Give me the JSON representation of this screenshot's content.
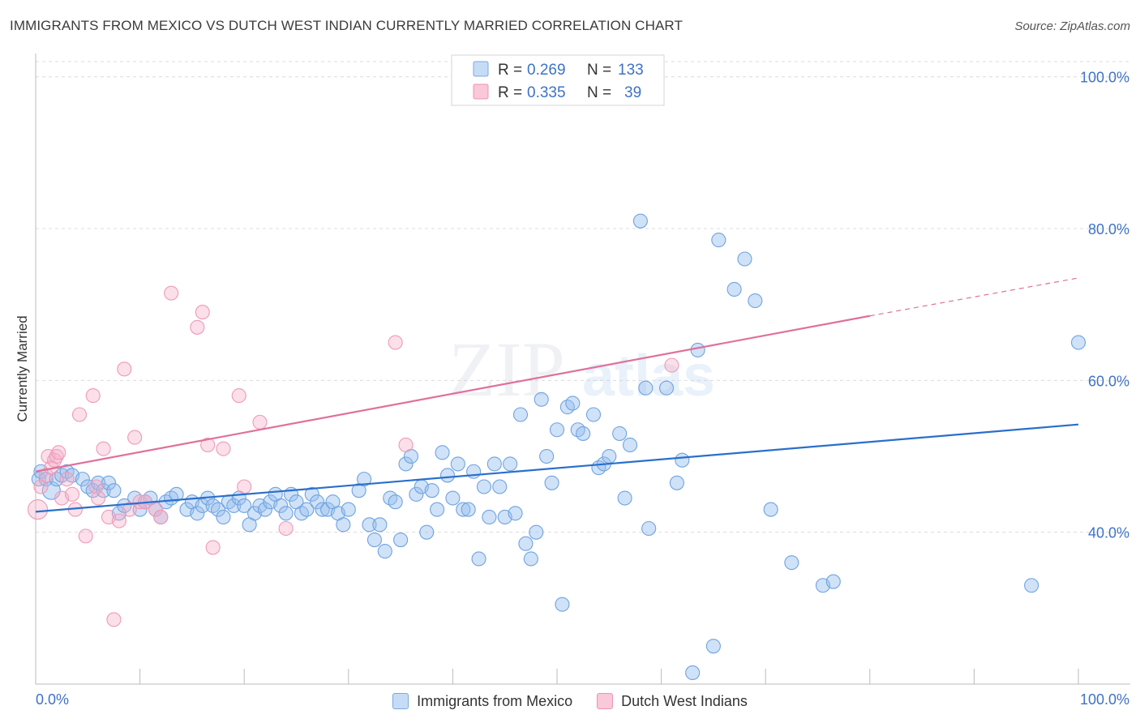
{
  "title": "IMMIGRANTS FROM MEXICO VS DUTCH WEST INDIAN CURRENTLY MARRIED CORRELATION CHART",
  "source": "Source: ZipAtlas.com",
  "watermark": {
    "zip": "ZIP",
    "atlas": "atlas"
  },
  "legend_stats": [
    {
      "r_label": "R =",
      "r_value": "0.269",
      "n_label": "N =",
      "n_value": "133"
    },
    {
      "r_label": "R =",
      "r_value": "0.335",
      "n_label": "N =",
      "n_value": "39"
    }
  ],
  "colors": {
    "blue": "#6fa3e0",
    "blue_line": "#2a6fcc",
    "pink": "#f0a0b8",
    "pink_line": "#e0709a",
    "tick_label": "#3d72c8"
  },
  "chart_data": {
    "type": "scatter",
    "title": "IMMIGRANTS FROM MEXICO VS DUTCH WEST INDIAN CURRENTLY MARRIED CORRELATION CHART",
    "xlabel": "",
    "ylabel": "Currently Married",
    "xlim": [
      0,
      100
    ],
    "ylim": [
      20,
      102
    ],
    "x_tick_labels": [
      "0.0%",
      "100.0%"
    ],
    "y_ticks": [
      {
        "value": 40,
        "label": "40.0%"
      },
      {
        "value": 60,
        "label": "60.0%"
      },
      {
        "value": 80,
        "label": "80.0%"
      },
      {
        "value": 100,
        "label": "100.0%"
      }
    ],
    "grid": true,
    "legend_position": "bottom",
    "series": [
      {
        "name": "Immigrants from Mexico",
        "color": "#6fa3e0",
        "trend": {
          "x": [
            0,
            100
          ],
          "y": [
            42.7,
            54.2
          ]
        },
        "points": [
          [
            0.3,
            47.0
          ],
          [
            0.5,
            48.0
          ],
          [
            1.0,
            47.0
          ],
          [
            1.5,
            45.5
          ],
          [
            2.0,
            47.0
          ],
          [
            2.5,
            47.5
          ],
          [
            3.0,
            48.0
          ],
          [
            3.5,
            47.5
          ],
          [
            4.5,
            47.0
          ],
          [
            5.0,
            46.0
          ],
          [
            5.5,
            45.5
          ],
          [
            6.0,
            46.5
          ],
          [
            6.5,
            45.5
          ],
          [
            7.0,
            46.5
          ],
          [
            7.5,
            45.5
          ],
          [
            8.0,
            42.5
          ],
          [
            8.5,
            43.5
          ],
          [
            9.5,
            44.5
          ],
          [
            10.0,
            43.0
          ],
          [
            10.5,
            44.0
          ],
          [
            11.0,
            44.5
          ],
          [
            11.5,
            43.0
          ],
          [
            12.0,
            42.0
          ],
          [
            12.5,
            44.0
          ],
          [
            13.0,
            44.5
          ],
          [
            13.5,
            45.0
          ],
          [
            14.5,
            43.0
          ],
          [
            15.0,
            44.0
          ],
          [
            15.5,
            42.5
          ],
          [
            16.0,
            43.5
          ],
          [
            16.5,
            44.5
          ],
          [
            17.0,
            43.5
          ],
          [
            17.5,
            43.0
          ],
          [
            18.0,
            42.0
          ],
          [
            18.5,
            44.0
          ],
          [
            19.0,
            43.5
          ],
          [
            19.5,
            44.5
          ],
          [
            20.0,
            43.5
          ],
          [
            20.5,
            41.0
          ],
          [
            21.0,
            42.5
          ],
          [
            21.5,
            43.5
          ],
          [
            22.0,
            43.0
          ],
          [
            22.5,
            44.0
          ],
          [
            23.0,
            45.0
          ],
          [
            23.5,
            43.5
          ],
          [
            24.0,
            42.5
          ],
          [
            24.5,
            45.0
          ],
          [
            25.0,
            44.0
          ],
          [
            25.5,
            42.5
          ],
          [
            26.0,
            43.0
          ],
          [
            26.5,
            45.0
          ],
          [
            27.0,
            44.0
          ],
          [
            27.5,
            43.0
          ],
          [
            28.0,
            43.0
          ],
          [
            28.5,
            44.0
          ],
          [
            29.0,
            42.5
          ],
          [
            29.5,
            41.0
          ],
          [
            30.0,
            43.0
          ],
          [
            31.0,
            45.5
          ],
          [
            31.5,
            47.0
          ],
          [
            32.0,
            41.0
          ],
          [
            32.5,
            39.0
          ],
          [
            33.0,
            41.0
          ],
          [
            33.5,
            37.5
          ],
          [
            34.0,
            44.5
          ],
          [
            34.5,
            44.0
          ],
          [
            35.0,
            39.0
          ],
          [
            35.5,
            49.0
          ],
          [
            36.0,
            50.0
          ],
          [
            36.5,
            45.0
          ],
          [
            37.0,
            46.0
          ],
          [
            37.5,
            40.0
          ],
          [
            38.0,
            45.5
          ],
          [
            38.5,
            43.0
          ],
          [
            39.0,
            50.5
          ],
          [
            39.5,
            47.5
          ],
          [
            40.0,
            44.5
          ],
          [
            40.5,
            49.0
          ],
          [
            41.0,
            43.0
          ],
          [
            41.5,
            43.0
          ],
          [
            42.0,
            48.0
          ],
          [
            42.5,
            36.5
          ],
          [
            43.0,
            46.0
          ],
          [
            43.5,
            42.0
          ],
          [
            44.0,
            49.0
          ],
          [
            44.5,
            46.0
          ],
          [
            45.0,
            42.0
          ],
          [
            45.5,
            49.0
          ],
          [
            46.0,
            42.5
          ],
          [
            46.5,
            55.5
          ],
          [
            47.0,
            38.5
          ],
          [
            47.5,
            36.5
          ],
          [
            48.0,
            40.0
          ],
          [
            48.5,
            57.5
          ],
          [
            49.0,
            50.0
          ],
          [
            49.5,
            46.5
          ],
          [
            50.0,
            53.5
          ],
          [
            50.5,
            30.5
          ],
          [
            51.0,
            56.5
          ],
          [
            51.5,
            57.0
          ],
          [
            52.0,
            53.5
          ],
          [
            52.5,
            53.0
          ],
          [
            53.5,
            55.5
          ],
          [
            54.0,
            48.5
          ],
          [
            54.5,
            49.0
          ],
          [
            55.0,
            50.0
          ],
          [
            56.0,
            53.0
          ],
          [
            56.5,
            44.5
          ],
          [
            57.0,
            51.5
          ],
          [
            58.5,
            59.0
          ],
          [
            58.0,
            81.0
          ],
          [
            58.8,
            40.5
          ],
          [
            60.5,
            59.0
          ],
          [
            61.5,
            46.5
          ],
          [
            62.0,
            49.5
          ],
          [
            63.5,
            64.0
          ],
          [
            65.0,
            25.0
          ],
          [
            65.5,
            78.5
          ],
          [
            67.0,
            72.0
          ],
          [
            68.0,
            76.0
          ],
          [
            69.0,
            70.5
          ],
          [
            70.5,
            43.0
          ],
          [
            72.5,
            36.0
          ],
          [
            75.5,
            33.0
          ],
          [
            76.5,
            33.5
          ],
          [
            95.5,
            33.0
          ],
          [
            100.0,
            65.0
          ],
          [
            63.0,
            21.5
          ]
        ]
      },
      {
        "name": "Dutch West Indians",
        "color": "#f0a0b8",
        "trend": {
          "x": [
            0,
            80
          ],
          "y": [
            48.0,
            68.5
          ]
        },
        "trend_dashed": {
          "x": [
            80,
            100
          ],
          "y": [
            68.5,
            73.5
          ]
        },
        "points": [
          [
            0.2,
            43.0
          ],
          [
            0.5,
            46.0
          ],
          [
            1.0,
            47.5
          ],
          [
            1.2,
            50.0
          ],
          [
            1.5,
            48.5
          ],
          [
            1.8,
            49.5
          ],
          [
            2.0,
            50.0
          ],
          [
            2.2,
            50.5
          ],
          [
            2.5,
            44.5
          ],
          [
            3.0,
            47.0
          ],
          [
            3.5,
            45.0
          ],
          [
            3.8,
            43.0
          ],
          [
            4.2,
            55.5
          ],
          [
            4.8,
            39.5
          ],
          [
            5.5,
            58.0
          ],
          [
            5.8,
            46.0
          ],
          [
            6.0,
            44.5
          ],
          [
            6.5,
            51.0
          ],
          [
            7.0,
            42.0
          ],
          [
            7.5,
            28.5
          ],
          [
            8.0,
            41.5
          ],
          [
            8.5,
            61.5
          ],
          [
            9.0,
            43.0
          ],
          [
            9.5,
            52.5
          ],
          [
            10.0,
            44.0
          ],
          [
            10.5,
            44.0
          ],
          [
            11.5,
            43.0
          ],
          [
            12.0,
            42.0
          ],
          [
            13.0,
            71.5
          ],
          [
            15.5,
            67.0
          ],
          [
            16.0,
            69.0
          ],
          [
            16.5,
            51.5
          ],
          [
            17.0,
            38.0
          ],
          [
            18.0,
            51.0
          ],
          [
            19.5,
            58.0
          ],
          [
            20.0,
            46.0
          ],
          [
            21.5,
            54.5
          ],
          [
            24.0,
            40.5
          ],
          [
            34.5,
            65.0
          ],
          [
            35.5,
            51.5
          ],
          [
            61.0,
            62.0
          ]
        ]
      }
    ]
  }
}
